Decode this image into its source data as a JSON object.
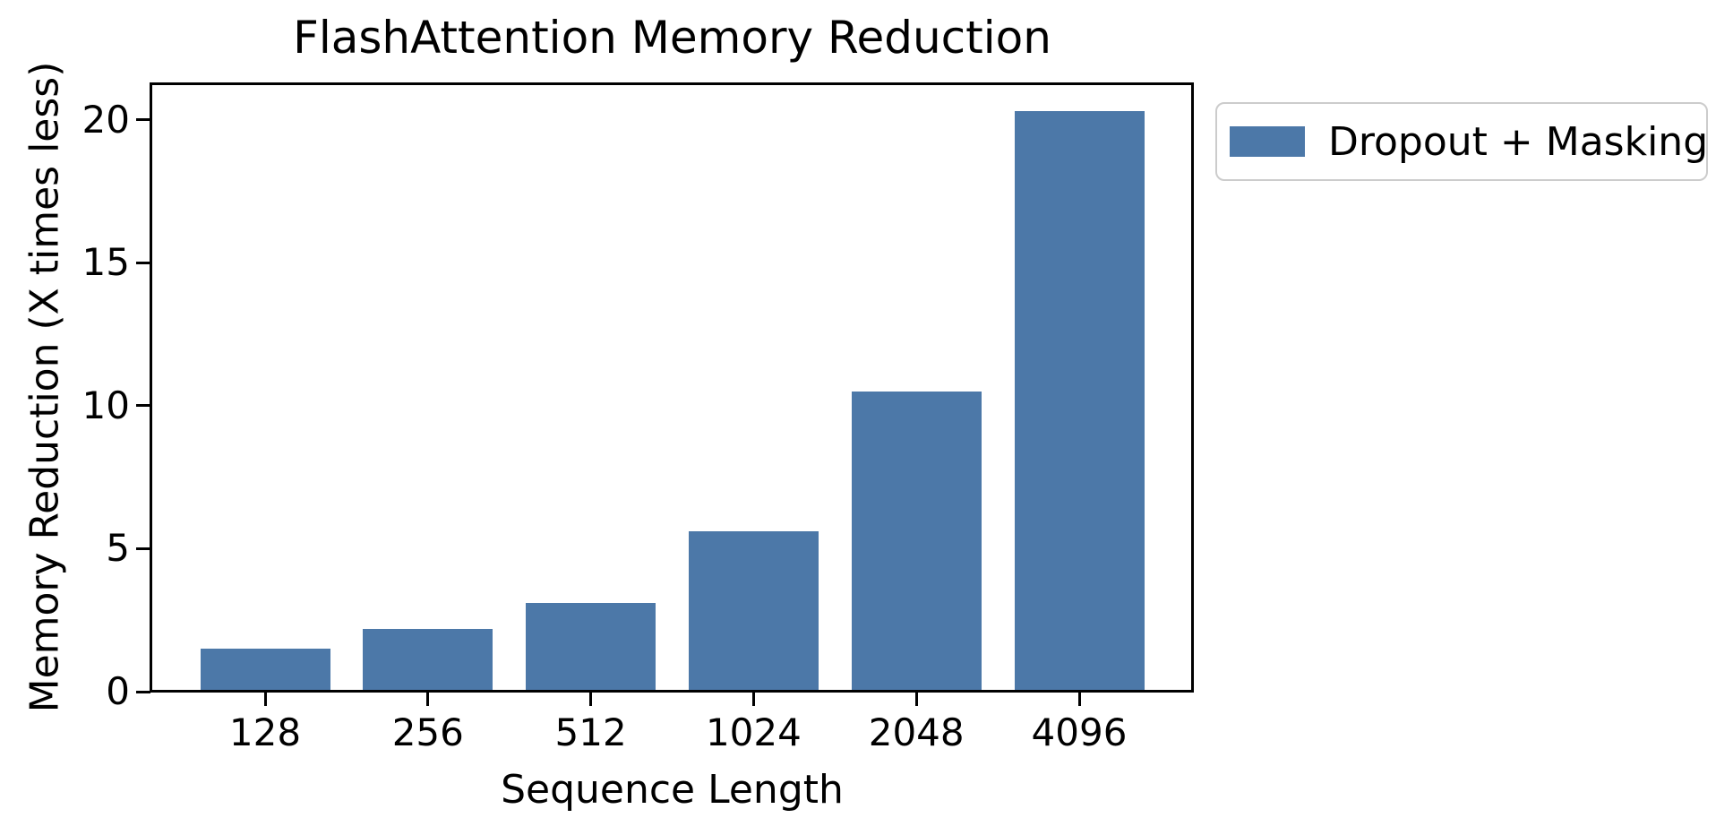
{
  "chart_data": {
    "type": "bar",
    "title": "FlashAttention Memory Reduction",
    "xlabel": "Sequence Length",
    "ylabel": "Memory Reduction (X times less)",
    "categories": [
      "128",
      "256",
      "512",
      "1024",
      "2048",
      "4096"
    ],
    "series": [
      {
        "name": "Dropout + Masking",
        "values": [
          1.5,
          2.2,
          3.1,
          5.6,
          10.5,
          20.3
        ],
        "color": "#4c78a8"
      }
    ],
    "yticks": [
      0,
      5,
      10,
      15,
      20
    ],
    "ylim": [
      0,
      21.3
    ],
    "grid": false,
    "legend_position": "outside-upper-right",
    "background_color": "#ffffff",
    "spine_color": "#000000",
    "legend_border_color": "#cccccc"
  }
}
